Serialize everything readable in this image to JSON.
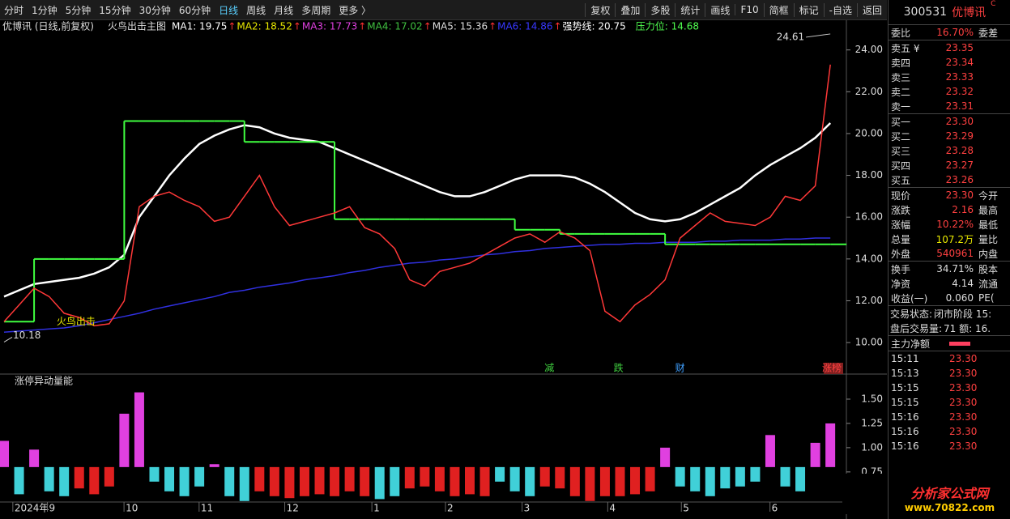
{
  "toolbar": {
    "periods": [
      "分时",
      "1分钟",
      "5分钟",
      "15分钟",
      "30分钟",
      "60分钟",
      "日线",
      "周线",
      "月线",
      "多周期",
      "更多 〉"
    ],
    "active": 6,
    "actions": [
      "复权",
      "叠加",
      "多股",
      "统计",
      "画线",
      "F10",
      "简框",
      "标记",
      "-自选",
      "返回"
    ]
  },
  "quote_panel": {
    "code": "300531",
    "name": "优博讯",
    "flag": "C",
    "rows": [
      {
        "label": "委比",
        "value": "16.70%",
        "extra": "委差",
        "color": "#ff4040"
      },
      {
        "label": "卖五 ¥",
        "value": "23.35",
        "color": "#ff4040"
      },
      {
        "label": "卖四",
        "value": "23.34",
        "color": "#ff4040"
      },
      {
        "label": "卖三",
        "value": "23.33",
        "color": "#ff4040"
      },
      {
        "label": "卖二",
        "value": "23.32",
        "color": "#ff4040"
      },
      {
        "label": "卖一",
        "value": "23.31",
        "color": "#ff4040"
      },
      {
        "label": "买一",
        "value": "23.30",
        "color": "#ff4040"
      },
      {
        "label": "买二",
        "value": "23.29",
        "color": "#ff4040"
      },
      {
        "label": "买三",
        "value": "23.28",
        "color": "#ff4040"
      },
      {
        "label": "买四",
        "value": "23.27",
        "color": "#ff4040"
      },
      {
        "label": "买五",
        "value": "23.26",
        "color": "#ff4040"
      },
      {
        "label": "现价",
        "value": "23.30",
        "extra": "今开",
        "color": "#ff4040"
      },
      {
        "label": "涨跌",
        "value": "2.16",
        "extra": "最高",
        "color": "#ff4040"
      },
      {
        "label": "涨幅",
        "value": "10.22%",
        "extra": "最低",
        "color": "#ff4040"
      },
      {
        "label": "总量",
        "value": "107.2万",
        "extra": "量比",
        "color": "#e8e800"
      },
      {
        "label": "外盘",
        "value": "540961",
        "extra": "内盘",
        "color": "#ff4040"
      },
      {
        "label": "换手",
        "value": "34.71%",
        "extra": "股本",
        "color": "#dddddd"
      },
      {
        "label": "净资",
        "value": "4.14",
        "extra": "流通",
        "color": "#dddddd"
      },
      {
        "label": "收益(一)",
        "value": "0.060",
        "extra": "PE(",
        "color": "#dddddd"
      }
    ],
    "status": [
      {
        "label": "交易状态:",
        "value": "闭市阶段 15:"
      },
      {
        "label": "盘后交易量:",
        "value": "71  额: 16."
      }
    ],
    "main_net": "主力净额",
    "ticks": [
      [
        "15:11",
        "23.30"
      ],
      [
        "15:13",
        "23.30"
      ],
      [
        "15:15",
        "23.30"
      ],
      [
        "15:15",
        "23.30"
      ],
      [
        "15:16",
        "23.30"
      ],
      [
        "15:16",
        "23.30"
      ],
      [
        "15:16",
        "23.30"
      ]
    ]
  },
  "watermark": {
    "title": "分析家公式网",
    "url": "www.70822.com"
  },
  "chart_data": [
    {
      "type": "line",
      "title": "优博讯 (日线,前复权)",
      "subtitle": "火鸟出击主图",
      "trend_arrow": "↑",
      "legend_items": [
        {
          "label": "MA1: 19.75",
          "color": "#ffffff"
        },
        {
          "label": "MA2: 18.52",
          "color": "#e8e800"
        },
        {
          "label": "MA3: 17.73",
          "color": "#e040e0"
        },
        {
          "label": "MA4: 17.02",
          "color": "#40c040"
        },
        {
          "label": "MA5: 15.36",
          "color": "#dddddd"
        },
        {
          "label": "MA6: 14.86",
          "color": "#3838ff"
        },
        {
          "label": "强势线: 20.75",
          "color": "#ffffff"
        },
        {
          "label": "压力位: 14.68",
          "color": "#50ff50"
        }
      ],
      "x": [
        0,
        1,
        2,
        3,
        4,
        5,
        6,
        7,
        8,
        9,
        10,
        11,
        12,
        13,
        14,
        15,
        16,
        17,
        18,
        19,
        20,
        21,
        22,
        23,
        24,
        25,
        26,
        27,
        28,
        29,
        30,
        31,
        32,
        33,
        34,
        35,
        36,
        37,
        38,
        39,
        40,
        41,
        42,
        43,
        44,
        45,
        46,
        47,
        48,
        49,
        50,
        51,
        52,
        53,
        54,
        55
      ],
      "xlim": [
        -0.27,
        56.07
      ],
      "xticks": [
        {
          "value": 0.8,
          "label": "2024年"
        },
        {
          "value": 3.1,
          "label": "9"
        },
        {
          "value": 8.2,
          "label": "10"
        },
        {
          "value": 13.2,
          "label": "11"
        },
        {
          "value": 18.9,
          "label": "12"
        },
        {
          "value": 24.7,
          "label": "1"
        },
        {
          "value": 29.6,
          "label": "2"
        },
        {
          "value": 34.7,
          "label": "3"
        },
        {
          "value": 40.4,
          "label": "4"
        },
        {
          "value": 45.3,
          "label": "5"
        },
        {
          "value": 51.2,
          "label": "6"
        }
      ],
      "ylim": [
        8.57,
        24.84
      ],
      "yticks": [
        {
          "value": 10,
          "label": "10.00"
        },
        {
          "value": 12,
          "label": "12.00"
        },
        {
          "value": 14,
          "label": "14.00"
        },
        {
          "value": 16,
          "label": "16.00"
        },
        {
          "value": 18,
          "label": "18.00"
        },
        {
          "value": 20,
          "label": "20.00"
        },
        {
          "value": 22,
          "label": "22.00"
        },
        {
          "value": 24,
          "label": "24.00"
        }
      ],
      "series": [
        {
          "color": "#3030e0",
          "values": [
            10.5,
            10.55,
            10.6,
            10.65,
            10.7,
            10.8,
            10.95,
            11.1,
            11.25,
            11.4,
            11.6,
            11.75,
            11.9,
            12.05,
            12.2,
            12.4,
            12.5,
            12.65,
            12.75,
            12.85,
            13.0,
            13.1,
            13.2,
            13.35,
            13.45,
            13.6,
            13.7,
            13.8,
            13.85,
            13.95,
            14.0,
            14.1,
            14.2,
            14.25,
            14.35,
            14.4,
            14.5,
            14.55,
            14.6,
            14.65,
            14.7,
            14.7,
            14.75,
            14.75,
            14.8,
            14.8,
            14.8,
            14.85,
            14.85,
            14.9,
            14.9,
            14.9,
            14.95,
            14.95,
            15.0,
            15.0
          ]
        },
        {
          "color": "#ffffff",
          "values": [
            12.2,
            12.5,
            12.8,
            12.9,
            13.0,
            13.1,
            13.3,
            13.6,
            14.2,
            16.0,
            17.0,
            18.0,
            18.8,
            19.5,
            19.9,
            20.2,
            20.4,
            20.3,
            20.0,
            19.8,
            19.7,
            19.6,
            19.3,
            19.0,
            18.7,
            18.4,
            18.1,
            17.8,
            17.5,
            17.2,
            17.0,
            17.0,
            17.2,
            17.5,
            17.8,
            18.0,
            18.0,
            18.0,
            17.9,
            17.6,
            17.2,
            16.7,
            16.2,
            15.9,
            15.8,
            15.9,
            16.2,
            16.6,
            17.0,
            17.4,
            18.0,
            18.5,
            18.9,
            19.3,
            19.8,
            20.5
          ]
        },
        {
          "color": "#40ff40",
          "step": true,
          "values": [
            11.0,
            11.0,
            14.0,
            14.0,
            14.0,
            14.0,
            14.0,
            14.0,
            20.6,
            20.6,
            20.6,
            20.6,
            20.6,
            20.6,
            20.6,
            20.6,
            19.6,
            19.6,
            19.6,
            19.6,
            19.6,
            19.6,
            15.9,
            15.9,
            15.9,
            15.9,
            15.9,
            15.9,
            15.9,
            15.9,
            15.9,
            15.9,
            15.9,
            15.9,
            15.4,
            15.4,
            15.4,
            15.2,
            15.2,
            15.2,
            15.2,
            15.2,
            15.2,
            15.2,
            14.7,
            14.7,
            14.7,
            14.7,
            14.7,
            14.7,
            14.7,
            14.7,
            14.7,
            14.7,
            14.7,
            14.7
          ]
        },
        {
          "color": "#ff3838",
          "values": [
            11.0,
            11.8,
            12.6,
            12.2,
            11.4,
            11.2,
            10.8,
            10.9,
            12.0,
            16.5,
            17.0,
            17.2,
            16.8,
            16.5,
            15.8,
            16.0,
            17.0,
            18.0,
            16.5,
            15.6,
            15.8,
            16.0,
            16.2,
            16.5,
            15.5,
            15.2,
            14.5,
            13.0,
            12.7,
            13.4,
            13.6,
            13.8,
            14.2,
            14.6,
            15.0,
            15.2,
            14.8,
            15.3,
            15.0,
            14.4,
            11.5,
            11.0,
            11.8,
            12.3,
            13.0,
            15.0,
            15.6,
            16.2,
            15.8,
            15.7,
            15.6,
            16.0,
            17.0,
            16.8,
            17.5,
            23.3
          ]
        }
      ],
      "annotations": [
        {
          "text": "24.61",
          "x": 55,
          "y": 24.61
        },
        {
          "text": "10.18",
          "x": 0,
          "y": 10.18
        },
        {
          "text": "火鸟出击",
          "x": 3.5,
          "y": 11.0
        }
      ],
      "event_markers": [
        {
          "text": "减",
          "x": 36.3,
          "color": "#40d040"
        },
        {
          "text": "跌",
          "x": 40.9,
          "color": "#40d040"
        },
        {
          "text": "财",
          "x": 45.0,
          "color": "#40a0ff"
        },
        {
          "text": "涨榜",
          "x": 55.1,
          "color": "#ff4040"
        }
      ]
    },
    {
      "type": "bar",
      "title": "涨停异动量能",
      "baseline": 0.8,
      "ylim": [
        0.44,
        1.625
      ],
      "yticks": [
        {
          "value": 0.75,
          "label": "0.75"
        },
        {
          "value": 1,
          "label": "1.00"
        },
        {
          "value": 1.25,
          "label": "1.25"
        },
        {
          "value": 1.5,
          "label": "1.50"
        }
      ],
      "values": [
        1.07,
        0.52,
        0.98,
        0.55,
        0.5,
        0.58,
        0.52,
        0.6,
        1.35,
        1.57,
        0.65,
        0.55,
        0.5,
        0.6,
        0.83,
        0.5,
        0.45,
        0.55,
        0.5,
        0.48,
        0.5,
        0.52,
        0.5,
        0.55,
        0.5,
        0.47,
        0.5,
        0.58,
        0.6,
        0.55,
        0.5,
        0.52,
        0.5,
        0.65,
        0.55,
        0.5,
        0.6,
        0.58,
        0.5,
        0.45,
        0.5,
        0.5,
        0.52,
        0.55,
        1.0,
        0.6,
        0.55,
        0.5,
        0.58,
        0.6,
        0.65,
        1.13,
        0.6,
        0.55,
        1.05,
        1.25
      ],
      "colors": [
        "#e040e0",
        "#40d0d8",
        "#e040e0",
        "#40d0d8",
        "#40d0d8",
        "#e02020",
        "#e02020",
        "#e02020",
        "#e040e0",
        "#e040e0",
        "#40d0d8",
        "#40d0d8",
        "#40d0d8",
        "#40d0d8",
        "#e040e0",
        "#40d0d8",
        "#40d0d8",
        "#e02020",
        "#e02020",
        "#e02020",
        "#e02020",
        "#e02020",
        "#e02020",
        "#e02020",
        "#e02020",
        "#40d0d8",
        "#40d0d8",
        "#e02020",
        "#e02020",
        "#e02020",
        "#e02020",
        "#e02020",
        "#e02020",
        "#40d0d8",
        "#40d0d8",
        "#40d0d8",
        "#e02020",
        "#e02020",
        "#e02020",
        "#e02020",
        "#e02020",
        "#e02020",
        "#e02020",
        "#e02020",
        "#e040e0",
        "#40d0d8",
        "#40d0d8",
        "#40d0d8",
        "#40d0d8",
        "#40d0d8",
        "#40d0d8",
        "#e040e0",
        "#40d0d8",
        "#40d0d8",
        "#e040e0",
        "#e040e0"
      ]
    }
  ]
}
